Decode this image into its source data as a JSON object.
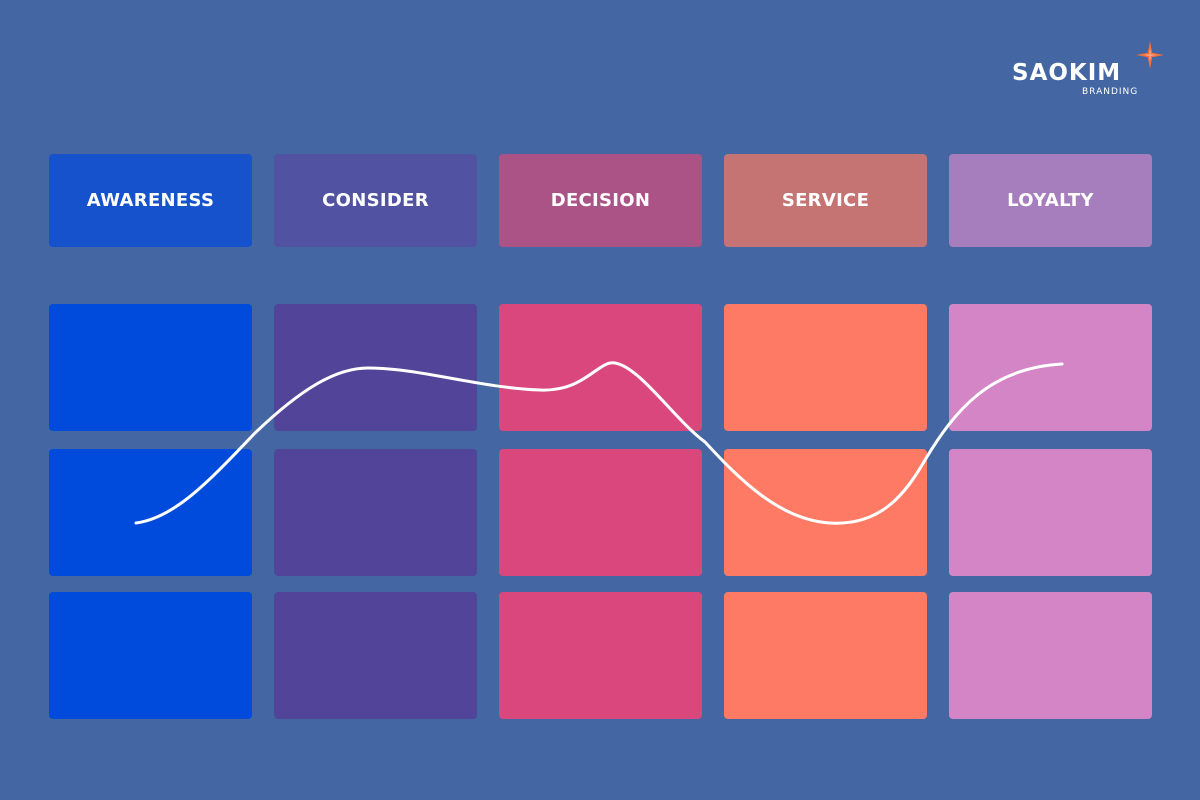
{
  "logo": {
    "name": "SAOKIM",
    "tagline": "BRANDING",
    "star_color": "#f26f3b"
  },
  "stages": [
    {
      "label": "AWARENESS",
      "header_color": "#1652cc",
      "cell_color": "#004bdb"
    },
    {
      "label": "CONSIDER",
      "header_color": "#5252a3",
      "cell_color": "#524499"
    },
    {
      "label": "DECISION",
      "header_color": "#ab5287",
      "cell_color": "#d9477c"
    },
    {
      "label": "SERVICE",
      "header_color": "#c57373",
      "cell_color": "#ff7a64"
    },
    {
      "label": "LOYALTY",
      "header_color": "#a67dbd",
      "cell_color": "#d385c6"
    }
  ],
  "journey_line_color": "#ffffff"
}
